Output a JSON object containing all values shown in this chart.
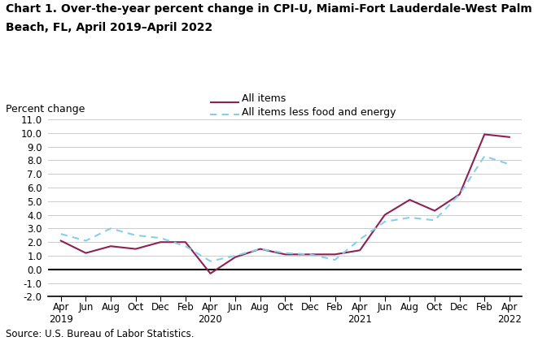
{
  "title_line1": "Chart 1. Over-the-year percent change in CPI-U, Miami-Fort Lauderdale-West Palm",
  "title_line2": "Beach, FL, April 2019–April 2022",
  "ylabel": "Percent change",
  "source": "Source: U.S. Bureau of Labor Statistics.",
  "xlabels": [
    "Apr\n2019",
    "Jun",
    "Aug",
    "Oct",
    "Dec",
    "Feb",
    "Apr\n2020",
    "Jun",
    "Aug",
    "Oct",
    "Dec",
    "Feb",
    "Apr\n2021",
    "Jun",
    "Aug",
    "Oct",
    "Dec",
    "Feb",
    "Apr\n2022"
  ],
  "ylim": [
    -2.0,
    11.0
  ],
  "yticks": [
    -2.0,
    -1.0,
    0.0,
    1.0,
    2.0,
    3.0,
    4.0,
    5.0,
    6.0,
    7.0,
    8.0,
    9.0,
    10.0,
    11.0
  ],
  "all_items": [
    2.1,
    1.2,
    1.7,
    1.5,
    2.0,
    2.0,
    -0.3,
    0.9,
    1.5,
    1.1,
    1.1,
    1.1,
    1.4,
    4.0,
    5.1,
    4.3,
    5.5,
    9.9,
    9.7
  ],
  "all_items_less": [
    2.6,
    2.1,
    3.0,
    2.5,
    2.3,
    1.7,
    0.6,
    1.0,
    1.5,
    1.2,
    1.1,
    0.7,
    2.2,
    3.5,
    3.8,
    3.6,
    5.5,
    8.3,
    7.7
  ],
  "all_items_color": "#8B2252",
  "all_items_less_color": "#87CEEB",
  "legend_all_items": "All items",
  "legend_all_items_less": "All items less food and energy",
  "grid_color": "#cccccc",
  "title_fontsize": 10,
  "label_fontsize": 9,
  "tick_fontsize": 8.5,
  "source_fontsize": 8.5
}
